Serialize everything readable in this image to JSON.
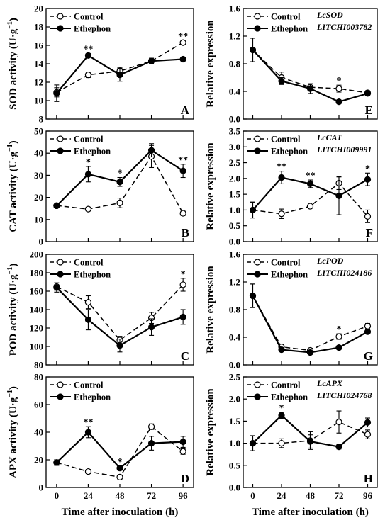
{
  "figure": {
    "x_ticks": [
      0,
      24,
      48,
      72,
      96
    ],
    "xlabel": "Time after inoculation (h)",
    "legend": [
      "Control",
      "Ethephon"
    ],
    "colors": {
      "ink": "#000000",
      "control_fill": "#ffffff",
      "ethephon_fill": "#000000"
    }
  },
  "chart_data": [
    {
      "id": "A",
      "type": "line",
      "letter": "A",
      "ylabel_main": "SOD activity (U·g",
      "ylabel_sup": "−1",
      "ylabel_tail": ")",
      "ylim": [
        8,
        20
      ],
      "yticks": [
        8,
        10,
        12,
        14,
        16,
        18,
        20
      ],
      "ytick_labels": [
        "8",
        "10",
        "12",
        "14",
        "16",
        "18",
        "20"
      ],
      "gene": [],
      "x": [
        0,
        24,
        48,
        72,
        96
      ],
      "series": [
        {
          "name": "Control",
          "values": [
            10.9,
            12.8,
            13.2,
            14.3,
            16.3
          ],
          "errors": [
            0.5,
            0.3,
            0.4,
            0.3,
            0.2
          ]
        },
        {
          "name": "Ethephon",
          "values": [
            10.8,
            14.9,
            12.8,
            14.3,
            14.5
          ],
          "errors": [
            0.9,
            0.2,
            0.7,
            0.3,
            0.2
          ]
        }
      ],
      "annotations": [
        {
          "x": 24,
          "text": "**"
        },
        {
          "x": 96,
          "text": "**"
        }
      ]
    },
    {
      "id": "B",
      "type": "line",
      "letter": "B",
      "ylabel_main": "CAT activity (U·g",
      "ylabel_sup": "−1",
      "ylabel_tail": ")",
      "ylim": [
        0,
        50
      ],
      "yticks": [
        0,
        10,
        20,
        30,
        40,
        50
      ],
      "ytick_labels": [
        "0",
        "10",
        "20",
        "30",
        "40",
        "50"
      ],
      "gene": [],
      "x": [
        0,
        24,
        48,
        72,
        96
      ],
      "series": [
        {
          "name": "Control",
          "values": [
            16.3,
            14.7,
            17.5,
            38.5,
            12.8
          ],
          "errors": [
            0.5,
            0.8,
            2.2,
            5.0,
            1.0
          ]
        },
        {
          "name": "Ethephon",
          "values": [
            16.2,
            30.5,
            27.0,
            41.3,
            32.0
          ],
          "errors": [
            0.5,
            3.5,
            2.0,
            3.0,
            3.0
          ]
        }
      ],
      "annotations": [
        {
          "x": 24,
          "text": "*"
        },
        {
          "x": 48,
          "text": "*"
        },
        {
          "x": 96,
          "text": "**"
        }
      ]
    },
    {
      "id": "C",
      "type": "line",
      "letter": "C",
      "ylabel_main": "POD activity (U·g",
      "ylabel_sup": "−1",
      "ylabel_tail": ")",
      "ylim": [
        80,
        200
      ],
      "yticks": [
        80,
        100,
        120,
        140,
        160,
        180,
        200
      ],
      "ytick_labels": [
        "80",
        "100",
        "120",
        "140",
        "160",
        "180",
        "200"
      ],
      "gene": [],
      "x": [
        0,
        24,
        48,
        72,
        96
      ],
      "series": [
        {
          "name": "Control",
          "values": [
            165,
            148,
            107,
            131,
            167
          ],
          "errors": [
            4,
            7,
            4,
            6,
            7
          ]
        },
        {
          "name": "Ethephon",
          "values": [
            164,
            129,
            101,
            121,
            132
          ],
          "errors": [
            5,
            11,
            7,
            9,
            8
          ]
        }
      ],
      "annotations": [
        {
          "x": 96,
          "text": "*"
        }
      ]
    },
    {
      "id": "D",
      "type": "line",
      "letter": "D",
      "ylabel_main": "APX activity (U·g",
      "ylabel_sup": "−1",
      "ylabel_tail": ")",
      "ylim": [
        0,
        80
      ],
      "yticks": [
        0,
        20,
        40,
        60,
        80
      ],
      "ytick_labels": [
        "0",
        "20",
        "40",
        "60",
        "80"
      ],
      "gene": [],
      "x": [
        0,
        24,
        48,
        72,
        96
      ],
      "series": [
        {
          "name": "Control",
          "values": [
            18,
            11.5,
            7.5,
            44,
            26
          ],
          "errors": [
            2,
            1.5,
            1.5,
            2,
            2
          ]
        },
        {
          "name": "Ethephon",
          "values": [
            18,
            40,
            14,
            32,
            33
          ],
          "errors": [
            2,
            4,
            1.5,
            5,
            4
          ]
        }
      ],
      "annotations": [
        {
          "x": 24,
          "text": "**"
        },
        {
          "x": 48,
          "text": "*"
        }
      ]
    },
    {
      "id": "E",
      "type": "line",
      "letter": "E",
      "ylabel_main": "Relative expression",
      "ylabel_sup": "",
      "ylabel_tail": "",
      "ylim": [
        0,
        1.6
      ],
      "yticks": [
        0,
        0.4,
        0.8,
        1.2,
        1.6
      ],
      "ytick_labels": [
        "0.0",
        "0.4",
        "0.8",
        "1.2",
        "1.6"
      ],
      "gene": [
        "LcSOD",
        "LITCHI003782"
      ],
      "x": [
        0,
        24,
        48,
        72,
        96
      ],
      "series": [
        {
          "name": "Control",
          "values": [
            1.0,
            0.6,
            0.46,
            0.44,
            0.38
          ],
          "errors": [
            0.17,
            0.08,
            0.05,
            0.05,
            0.03
          ]
        },
        {
          "name": "Ethephon",
          "values": [
            1.0,
            0.55,
            0.44,
            0.25,
            0.37
          ],
          "errors": [
            0.17,
            0.05,
            0.07,
            0.02,
            0.03
          ]
        }
      ],
      "annotations": [
        {
          "x": 72,
          "text": "*"
        }
      ]
    },
    {
      "id": "F",
      "type": "line",
      "letter": "F",
      "ylabel_main": "Relative expression",
      "ylabel_sup": "",
      "ylabel_tail": "",
      "ylim": [
        0,
        3.5
      ],
      "yticks": [
        0,
        0.5,
        1.0,
        1.5,
        2.0,
        2.5,
        3.0,
        3.5
      ],
      "ytick_labels": [
        "0.0",
        "0.5",
        "1.0",
        "1.5",
        "2.0",
        "2.5",
        "3.0",
        "3.5"
      ],
      "gene": [
        "LcCAT",
        "LITCHI009991"
      ],
      "x": [
        0,
        24,
        48,
        72,
        96
      ],
      "series": [
        {
          "name": "Control",
          "values": [
            1.0,
            0.88,
            1.12,
            1.85,
            0.8
          ],
          "errors": [
            0.25,
            0.15,
            0.05,
            0.2,
            0.2
          ]
        },
        {
          "name": "Ethephon",
          "values": [
            1.0,
            2.03,
            1.83,
            1.45,
            1.97
          ],
          "errors": [
            0.25,
            0.2,
            0.12,
            0.6,
            0.2
          ]
        }
      ],
      "annotations": [
        {
          "x": 24,
          "text": "**"
        },
        {
          "x": 48,
          "text": "**"
        },
        {
          "x": 96,
          "text": "*"
        }
      ]
    },
    {
      "id": "G",
      "type": "line",
      "letter": "G",
      "ylabel_main": "Relative expression",
      "ylabel_sup": "",
      "ylabel_tail": "",
      "ylim": [
        0,
        1.6
      ],
      "yticks": [
        0,
        0.4,
        0.8,
        1.2,
        1.6
      ],
      "ytick_labels": [
        "0.0",
        "0.4",
        "0.8",
        "1.2",
        "1.6"
      ],
      "gene": [
        "LcPOD",
        "LITCHI024186"
      ],
      "x": [
        0,
        24,
        48,
        72,
        96
      ],
      "series": [
        {
          "name": "Control",
          "values": [
            1.0,
            0.26,
            0.21,
            0.41,
            0.56
          ],
          "errors": [
            0.17,
            0.03,
            0.03,
            0.04,
            0.04
          ]
        },
        {
          "name": "Ethephon",
          "values": [
            1.0,
            0.22,
            0.18,
            0.25,
            0.48
          ],
          "errors": [
            0.17,
            0.03,
            0.02,
            0.02,
            0.03
          ]
        }
      ],
      "annotations": [
        {
          "x": 72,
          "text": "*"
        }
      ]
    },
    {
      "id": "H",
      "type": "line",
      "letter": "H",
      "ylabel_main": "Relative expression",
      "ylabel_sup": "",
      "ylabel_tail": "",
      "ylim": [
        0,
        2.5
      ],
      "yticks": [
        0,
        0.5,
        1.0,
        1.5,
        2.0,
        2.5
      ],
      "ytick_labels": [
        "0.0",
        "0.5",
        "1.0",
        "1.5",
        "2.0",
        "2.5"
      ],
      "gene": [
        "LcAPX",
        "LITCHI024768"
      ],
      "x": [
        0,
        24,
        48,
        72,
        96
      ],
      "series": [
        {
          "name": "Control",
          "values": [
            1.0,
            1.0,
            1.06,
            1.48,
            1.2
          ],
          "errors": [
            0.17,
            0.1,
            0.2,
            0.25,
            0.1
          ]
        },
        {
          "name": "Ethephon",
          "values": [
            1.0,
            1.63,
            1.04,
            0.92,
            1.47
          ],
          "errors": [
            0.17,
            0.07,
            0.15,
            0.05,
            0.1
          ]
        }
      ],
      "annotations": [
        {
          "x": 24,
          "text": "*"
        }
      ]
    }
  ]
}
